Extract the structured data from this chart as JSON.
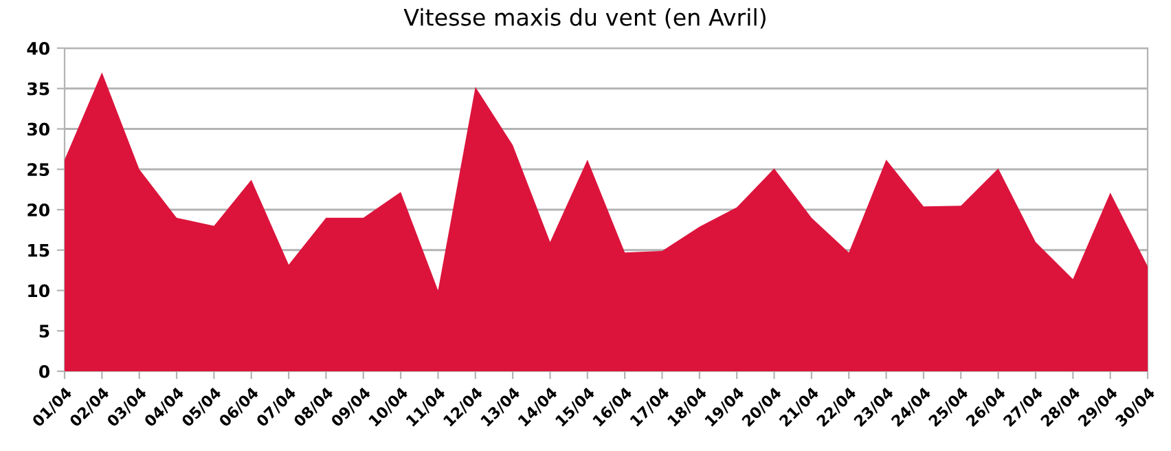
{
  "chart_data": {
    "type": "area",
    "title": "Vitesse maxis du vent (en Avril)",
    "categories": [
      "01/04",
      "02/04",
      "03/04",
      "04/04",
      "05/04",
      "06/04",
      "07/04",
      "08/04",
      "09/04",
      "10/04",
      "11/04",
      "12/04",
      "13/04",
      "14/04",
      "15/04",
      "16/04",
      "17/04",
      "18/04",
      "19/04",
      "20/04",
      "21/04",
      "22/04",
      "23/04",
      "24/04",
      "25/04",
      "26/04",
      "27/04",
      "28/04",
      "29/04",
      "30/04"
    ],
    "series": [
      {
        "color": "#dc143c",
        "values": [
          26.2,
          37,
          25,
          19,
          18,
          23.7,
          13.2,
          19,
          19,
          22.2,
          10,
          35.2,
          28,
          16,
          26.2,
          14.7,
          14.9,
          17.9,
          20.3,
          25.1,
          19,
          14.7,
          26.2,
          20.4,
          20.5,
          25.1,
          16,
          11.4,
          22.1,
          13
        ]
      }
    ],
    "ylim": [
      0,
      40
    ],
    "yticks": [
      0,
      5,
      10,
      15,
      20,
      25,
      30,
      35,
      40
    ],
    "grid": "y"
  }
}
